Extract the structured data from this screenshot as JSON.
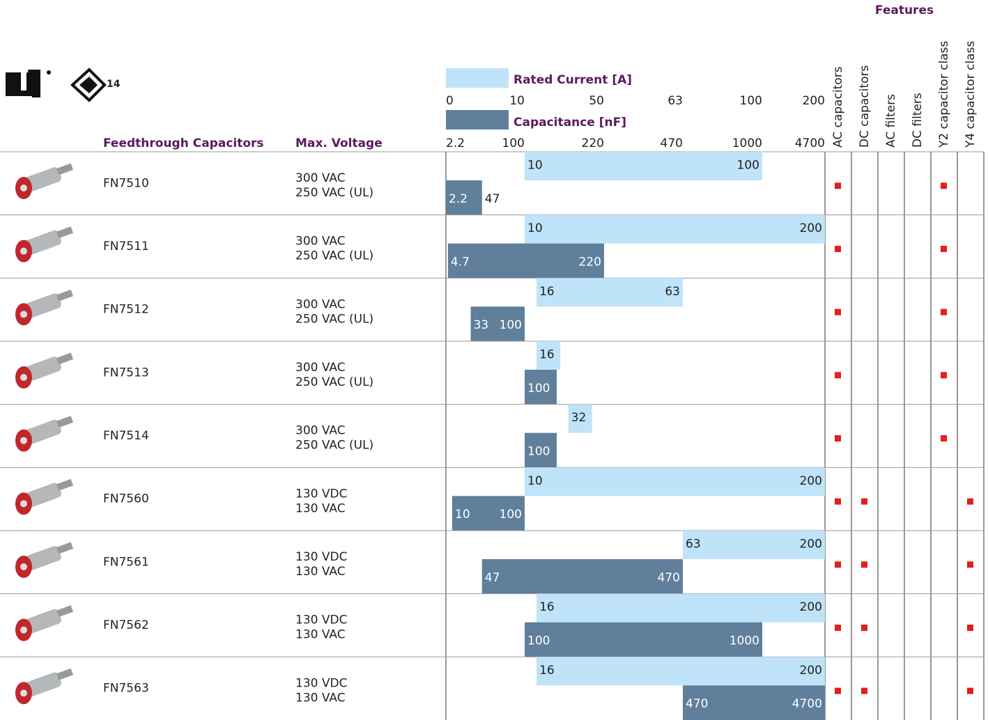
{
  "header": {
    "enec_mark": "14",
    "features_title": "Features",
    "col_product": "Feedthrough Capacitors",
    "col_voltage": "Max. Voltage",
    "current_legend": "Rated Current [A]",
    "capacitance_legend": "Capacitance [nF]",
    "current_ticks": [
      0,
      10,
      50,
      63,
      100,
      200
    ],
    "capacitance_ticks": [
      2.2,
      100,
      220,
      470,
      1000,
      4700
    ],
    "features": [
      "AC capacitors",
      "DC capacitors",
      "AC filters",
      "DC filters",
      "Y2 capacitor class",
      "Y4 capacitor class"
    ]
  },
  "rows": [
    {
      "name": "FN7510",
      "voltage": [
        "300 VAC",
        "250 VAC (UL)"
      ],
      "current": [
        10,
        100
      ],
      "capacitance": [
        2.2,
        47
      ],
      "features": [
        true,
        false,
        false,
        false,
        true,
        false
      ]
    },
    {
      "name": "FN7511",
      "voltage": [
        "300 VAC",
        "250 VAC (UL)"
      ],
      "current": [
        10,
        200
      ],
      "capacitance": [
        4.7,
        220
      ],
      "features": [
        true,
        false,
        false,
        false,
        true,
        false
      ]
    },
    {
      "name": "FN7512",
      "voltage": [
        "300 VAC",
        "250 VAC (UL)"
      ],
      "current": [
        16,
        63
      ],
      "capacitance": [
        33,
        100
      ],
      "features": [
        true,
        false,
        false,
        false,
        true,
        false
      ]
    },
    {
      "name": "FN7513",
      "voltage": [
        "300 VAC",
        "250 VAC (UL)"
      ],
      "current": [
        16
      ],
      "capacitance": [
        100
      ],
      "features": [
        true,
        false,
        false,
        false,
        true,
        false
      ]
    },
    {
      "name": "FN7514",
      "voltage": [
        "300 VAC",
        "250 VAC (UL)"
      ],
      "current": [
        32
      ],
      "capacitance": [
        100
      ],
      "features": [
        true,
        false,
        false,
        false,
        true,
        false
      ]
    },
    {
      "name": "FN7560",
      "voltage": [
        "130 VDC",
        "130 VAC"
      ],
      "current": [
        10,
        200
      ],
      "capacitance": [
        10,
        100
      ],
      "features": [
        true,
        true,
        false,
        false,
        false,
        true
      ]
    },
    {
      "name": "FN7561",
      "voltage": [
        "130 VDC",
        "130 VAC"
      ],
      "current": [
        63,
        200
      ],
      "capacitance": [
        47,
        470
      ],
      "features": [
        true,
        true,
        false,
        false,
        false,
        true
      ]
    },
    {
      "name": "FN7562",
      "voltage": [
        "130 VDC",
        "130 VAC"
      ],
      "current": [
        16,
        200
      ],
      "capacitance": [
        100,
        1000
      ],
      "features": [
        true,
        true,
        false,
        false,
        false,
        true
      ]
    },
    {
      "name": "FN7563",
      "voltage": [
        "130 VDC",
        "130 VAC"
      ],
      "current": [
        16,
        200
      ],
      "capacitance": [
        470,
        4700
      ],
      "features": [
        true,
        true,
        false,
        false,
        false,
        true
      ]
    }
  ]
}
